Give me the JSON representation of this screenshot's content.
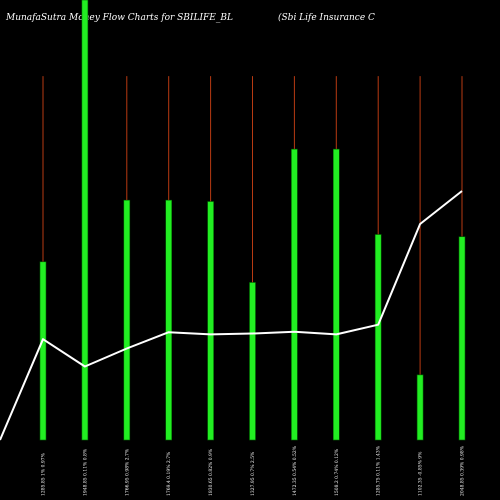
{
  "header": {
    "title_left": "MunafaSutra  Money Flow  Charts for SBILIFE_BL",
    "title_right": "(Sbi   Life   Insurance   C"
  },
  "colors": {
    "background": "#000000",
    "bar": "#22ee22",
    "bar_edge": "#006600",
    "wick": "#b83a12",
    "line": "#ffffff",
    "text": "#ffffff"
  },
  "chart_data": {
    "type": "bar",
    "categories": [
      "1285.85 1% 0.97%",
      "1948.85 0.11% 0.8%",
      "1766.95 0.98% 2.7%",
      "1769.4 0.19% 2.7%",
      "1830.65 0.82% 0.9%",
      "1327.95 0.7% 2.5%",
      "1472.35 0.54% 0.52%",
      "1508.2 0.74% 0.12%",
      "1285.75 0.11% 1.43%",
      "1102.35 -0.85% 9%",
      "2048.85 0.39% 0.98%"
    ],
    "bar_values": [
      40.5,
      100,
      54.5,
      54.5,
      54.2,
      35.8,
      66.1,
      66.1,
      46.7,
      14.8,
      46.2
    ],
    "wick_values": [
      82.7,
      100,
      82.7,
      82.7,
      82.7,
      82.7,
      82.7,
      82.7,
      82.7,
      82.7,
      82.7
    ],
    "line_values": [
      0,
      22.9,
      16.7,
      20.8,
      24.5,
      24.0,
      24.2,
      24.6,
      24.0,
      26.2,
      49.1,
      56.6
    ],
    "ylim": [
      0,
      100
    ]
  }
}
